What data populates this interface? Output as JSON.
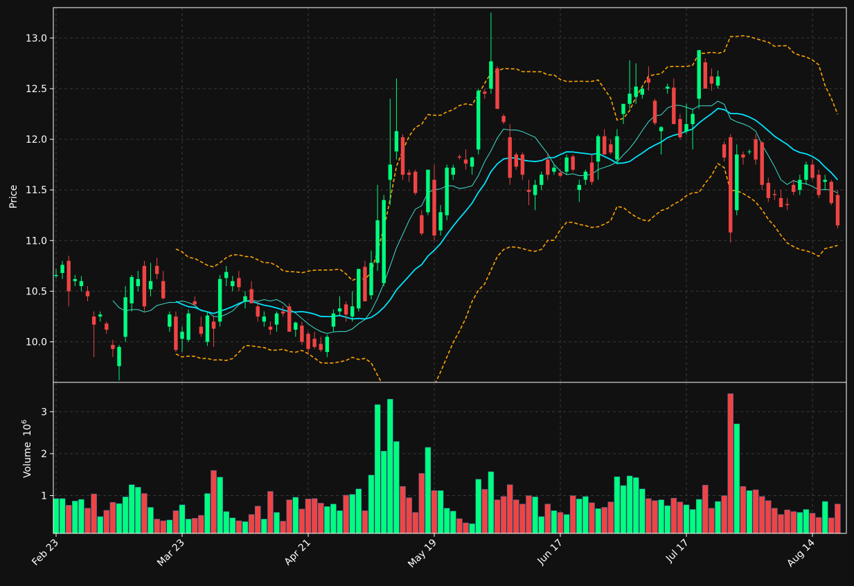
{
  "colors": {
    "background": "#111111",
    "up": "#00ff7f",
    "down": "#ef4444",
    "sma_short": "#40e0d0",
    "sma_long": "#00e5ff",
    "bands": "#ffa500",
    "grid": "#3a3a3a",
    "axis": "#ffffff",
    "text": "#ffffff"
  },
  "chart_data": {
    "type": "candlestick",
    "price_axis": {
      "label": "Price",
      "ylim": [
        9.6,
        13.3
      ],
      "ticks": [
        10.0,
        10.5,
        11.0,
        11.5,
        12.0,
        12.5,
        13.0
      ]
    },
    "volume_axis": {
      "label": "Volume",
      "multiplier_text": "10",
      "exponent_text": "6",
      "ylim": [
        0.1,
        3.7
      ],
      "ticks": [
        1,
        2,
        3
      ]
    },
    "x_ticks": [
      {
        "label": "Feb 23",
        "index": 0
      },
      {
        "label": "Mar 23",
        "index": 20
      },
      {
        "label": "Apr 21",
        "index": 40
      },
      {
        "label": "May 19",
        "index": 60
      },
      {
        "label": "Jun 17",
        "index": 80
      },
      {
        "label": "Jul 17",
        "index": 100
      },
      {
        "label": "Aug 14",
        "index": 120
      }
    ],
    "grid": true,
    "candles_ohlcv": [
      [
        10.65,
        10.72,
        10.63,
        10.66,
        0.93
      ],
      [
        10.68,
        10.8,
        10.62,
        10.76,
        0.93
      ],
      [
        10.8,
        10.85,
        10.35,
        10.5,
        0.77
      ],
      [
        10.6,
        10.66,
        10.55,
        10.62,
        0.87
      ],
      [
        10.55,
        10.65,
        10.5,
        10.6,
        0.91
      ],
      [
        10.5,
        10.55,
        10.4,
        10.45,
        0.7
      ],
      [
        10.25,
        10.3,
        9.85,
        10.17,
        1.04
      ],
      [
        10.25,
        10.3,
        10.2,
        10.27,
        0.5
      ],
      [
        10.18,
        10.2,
        10.08,
        10.12,
        0.65
      ],
      [
        9.97,
        10.02,
        9.85,
        9.93,
        0.84
      ],
      [
        9.76,
        9.97,
        9.62,
        9.95,
        0.81
      ],
      [
        10.05,
        10.55,
        10.0,
        10.44,
        0.97
      ],
      [
        10.38,
        10.66,
        10.3,
        10.64,
        1.26
      ],
      [
        10.55,
        10.7,
        10.5,
        10.62,
        1.2
      ],
      [
        10.75,
        10.8,
        10.3,
        10.35,
        1.05
      ],
      [
        10.52,
        10.78,
        10.45,
        10.6,
        0.72
      ],
      [
        10.75,
        10.83,
        10.62,
        10.67,
        0.44
      ],
      [
        10.6,
        10.7,
        10.42,
        10.43,
        0.4
      ],
      [
        10.15,
        10.3,
        10.1,
        10.27,
        0.42
      ],
      [
        10.25,
        10.3,
        9.9,
        9.92,
        0.64
      ],
      [
        10.03,
        10.15,
        9.9,
        10.1,
        0.78
      ],
      [
        10.02,
        10.32,
        10.0,
        10.28,
        0.44
      ],
      [
        10.4,
        10.45,
        10.35,
        10.37,
        0.46
      ],
      [
        10.15,
        10.25,
        10.05,
        10.08,
        0.53
      ],
      [
        10.0,
        10.3,
        9.96,
        10.26,
        1.05
      ],
      [
        10.2,
        10.25,
        9.95,
        10.13,
        1.6
      ],
      [
        10.2,
        10.66,
        10.15,
        10.62,
        1.44
      ],
      [
        10.63,
        10.75,
        10.55,
        10.69,
        0.62
      ],
      [
        10.55,
        10.65,
        10.5,
        10.6,
        0.47
      ],
      [
        10.63,
        10.7,
        10.5,
        10.54,
        0.4
      ],
      [
        10.4,
        10.5,
        10.33,
        10.45,
        0.38
      ],
      [
        10.52,
        10.6,
        10.38,
        10.38,
        0.55
      ],
      [
        10.35,
        10.4,
        10.2,
        10.25,
        0.75
      ],
      [
        10.2,
        10.3,
        10.15,
        10.25,
        0.44
      ],
      [
        10.15,
        10.2,
        10.07,
        10.12,
        1.1
      ],
      [
        10.17,
        10.3,
        10.1,
        10.28,
        0.6
      ],
      [
        10.3,
        10.35,
        10.25,
        10.28,
        0.39
      ],
      [
        10.35,
        10.38,
        10.1,
        10.1,
        0.9
      ],
      [
        10.12,
        10.2,
        10.05,
        10.19,
        0.96
      ],
      [
        10.16,
        10.2,
        9.97,
        10.0,
        0.68
      ],
      [
        10.08,
        10.1,
        9.87,
        9.93,
        0.92
      ],
      [
        10.03,
        10.1,
        9.93,
        9.95,
        0.93
      ],
      [
        9.98,
        10.05,
        9.9,
        9.92,
        0.82
      ],
      [
        9.9,
        10.07,
        9.85,
        10.05,
        0.74
      ],
      [
        10.15,
        10.32,
        10.1,
        10.28,
        0.8
      ],
      [
        10.3,
        10.45,
        10.25,
        10.33,
        0.64
      ],
      [
        10.37,
        10.4,
        10.2,
        10.27,
        1.01
      ],
      [
        10.25,
        10.5,
        10.2,
        10.35,
        1.03
      ],
      [
        10.33,
        10.72,
        10.3,
        10.72,
        1.16
      ],
      [
        10.74,
        10.8,
        10.4,
        10.4,
        0.64
      ],
      [
        10.46,
        10.9,
        10.42,
        10.78,
        1.49
      ],
      [
        10.78,
        11.55,
        10.7,
        11.2,
        3.17
      ],
      [
        10.58,
        11.45,
        10.55,
        11.4,
        2.06
      ],
      [
        11.6,
        12.4,
        11.35,
        11.75,
        3.3
      ],
      [
        11.88,
        12.6,
        11.8,
        12.08,
        2.29
      ],
      [
        12.02,
        12.05,
        11.6,
        11.65,
        1.22
      ],
      [
        11.67,
        11.7,
        11.58,
        11.65,
        0.95
      ],
      [
        11.68,
        11.7,
        11.45,
        11.47,
        0.6
      ],
      [
        11.25,
        11.3,
        11.05,
        11.07,
        1.53
      ],
      [
        11.28,
        11.7,
        11.25,
        11.7,
        2.15
      ],
      [
        11.6,
        11.75,
        11.0,
        11.05,
        1.12
      ],
      [
        11.1,
        11.35,
        11.05,
        11.28,
        1.12
      ],
      [
        11.25,
        11.75,
        11.2,
        11.72,
        0.7
      ],
      [
        11.65,
        11.75,
        11.6,
        11.72,
        0.63
      ],
      [
        11.83,
        11.85,
        11.8,
        11.82,
        0.45
      ],
      [
        11.8,
        11.9,
        11.7,
        11.76,
        0.35
      ],
      [
        11.73,
        11.83,
        11.65,
        11.82,
        0.33
      ],
      [
        11.9,
        12.5,
        11.85,
        12.48,
        1.39
      ],
      [
        12.47,
        12.5,
        12.4,
        12.45,
        1.15
      ],
      [
        12.5,
        13.25,
        12.45,
        12.77,
        1.57
      ],
      [
        12.7,
        12.72,
        12.3,
        12.3,
        0.9
      ],
      [
        12.23,
        12.25,
        12.15,
        12.17,
        0.98
      ],
      [
        12.02,
        12.15,
        11.55,
        11.62,
        1.26
      ],
      [
        11.85,
        11.87,
        11.7,
        11.73,
        0.9
      ],
      [
        11.85,
        11.87,
        11.6,
        11.65,
        0.8
      ],
      [
        11.5,
        11.6,
        11.35,
        11.48,
        1.0
      ],
      [
        11.45,
        11.6,
        11.3,
        11.55,
        0.97
      ],
      [
        11.55,
        11.68,
        11.5,
        11.65,
        0.5
      ],
      [
        11.8,
        11.85,
        11.6,
        11.65,
        0.8
      ],
      [
        11.68,
        11.75,
        11.65,
        11.72,
        0.64
      ],
      [
        11.67,
        11.7,
        11.62,
        11.64,
        0.6
      ],
      [
        11.68,
        11.85,
        11.65,
        11.82,
        0.55
      ],
      [
        11.83,
        11.85,
        11.68,
        11.7,
        1.0
      ],
      [
        11.5,
        11.6,
        11.38,
        11.55,
        0.92
      ],
      [
        11.6,
        11.7,
        11.55,
        11.68,
        0.98
      ],
      [
        11.77,
        11.85,
        11.55,
        11.58,
        0.83
      ],
      [
        11.78,
        12.05,
        11.6,
        12.03,
        0.69
      ],
      [
        12.03,
        12.1,
        11.85,
        11.85,
        0.72
      ],
      [
        11.95,
        12.0,
        11.85,
        11.87,
        0.85
      ],
      [
        11.8,
        12.1,
        11.75,
        12.03,
        1.45
      ],
      [
        12.25,
        12.35,
        12.15,
        12.35,
        1.24
      ],
      [
        12.35,
        12.78,
        12.3,
        12.45,
        1.47
      ],
      [
        12.42,
        12.75,
        12.35,
        12.52,
        1.43
      ],
      [
        12.44,
        12.52,
        12.4,
        12.5,
        1.16
      ],
      [
        12.6,
        12.72,
        12.48,
        12.56,
        0.93
      ],
      [
        12.38,
        12.4,
        12.14,
        12.16,
        0.88
      ],
      [
        12.08,
        12.13,
        11.85,
        12.12,
        0.9
      ],
      [
        12.5,
        12.55,
        12.45,
        12.52,
        0.76
      ],
      [
        12.51,
        12.6,
        12.15,
        12.15,
        0.94
      ],
      [
        12.2,
        12.25,
        12.0,
        12.02,
        0.85
      ],
      [
        12.08,
        12.35,
        12.05,
        12.15,
        0.78
      ],
      [
        12.15,
        12.3,
        11.9,
        12.25,
        0.67
      ],
      [
        12.4,
        12.88,
        12.3,
        12.88,
        0.91
      ],
      [
        12.76,
        12.8,
        12.5,
        12.5,
        1.25
      ],
      [
        12.62,
        12.7,
        12.48,
        12.55,
        0.7
      ],
      [
        12.53,
        12.68,
        12.5,
        12.62,
        0.86
      ],
      [
        11.95,
        11.98,
        11.78,
        11.82,
        1.0
      ],
      [
        12.02,
        12.05,
        10.98,
        11.08,
        3.43
      ],
      [
        11.3,
        11.95,
        11.25,
        11.85,
        2.71
      ],
      [
        11.85,
        11.88,
        11.75,
        11.82,
        1.22
      ],
      [
        11.88,
        11.9,
        11.85,
        11.88,
        1.12
      ],
      [
        12.0,
        12.05,
        11.75,
        11.8,
        1.14
      ],
      [
        11.97,
        11.98,
        11.5,
        11.55,
        0.98
      ],
      [
        11.57,
        11.62,
        11.38,
        11.42,
        0.88
      ],
      [
        11.46,
        11.5,
        11.4,
        11.45,
        0.7
      ],
      [
        11.42,
        11.5,
        11.35,
        11.33,
        0.55
      ],
      [
        11.36,
        11.42,
        11.3,
        11.35,
        0.66
      ],
      [
        11.55,
        11.6,
        11.45,
        11.48,
        0.62
      ],
      [
        11.5,
        11.65,
        11.45,
        11.6,
        0.6
      ],
      [
        11.6,
        11.78,
        11.55,
        11.75,
        0.67
      ],
      [
        11.75,
        11.8,
        11.6,
        11.62,
        0.58
      ],
      [
        11.65,
        11.7,
        11.42,
        11.45,
        0.48
      ],
      [
        11.58,
        11.65,
        11.5,
        11.6,
        0.86
      ],
      [
        11.58,
        11.6,
        11.35,
        11.37,
        0.47
      ],
      [
        11.45,
        11.5,
        11.12,
        11.15,
        0.8
      ]
    ],
    "sma_short_from_index": 9,
    "sma_long_from_index": 19,
    "band_from_index": 19,
    "band_width_k": 2
  }
}
